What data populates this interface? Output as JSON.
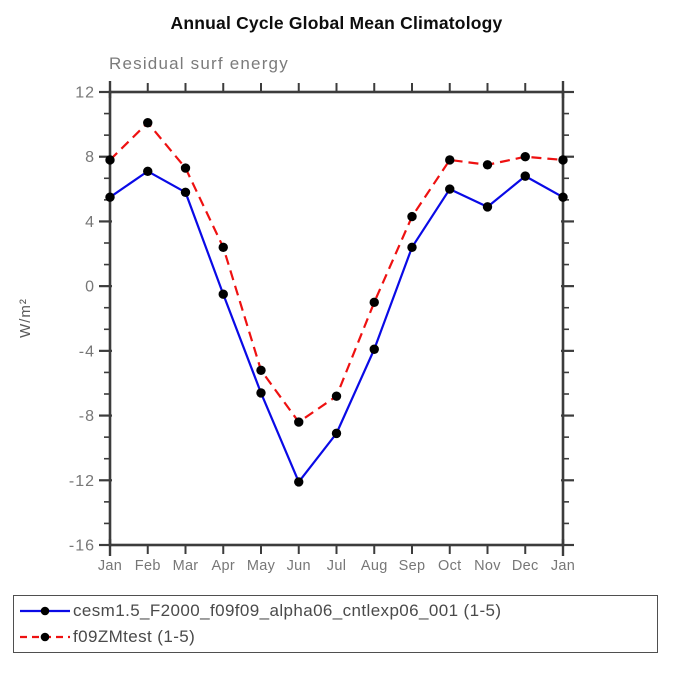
{
  "title": "Annual Cycle Global Mean Climatology",
  "chart_data": {
    "type": "line",
    "title": "Annual Cycle Global Mean Climatology",
    "subtitle": "Residual surf energy",
    "ylabel": "W/m²",
    "xlabel": "",
    "categories": [
      "Jan",
      "Feb",
      "Mar",
      "Apr",
      "May",
      "Jun",
      "Jul",
      "Aug",
      "Sep",
      "Oct",
      "Nov",
      "Dec",
      "Jan"
    ],
    "ylim": [
      -16,
      12
    ],
    "yticks_major": [
      12,
      8,
      4,
      0,
      -4,
      -8,
      -12,
      -16
    ],
    "yticks_minor_per_interval": 2,
    "grid": "off",
    "legend_position": "bottom-left-box",
    "marker": "filled-circle",
    "marker_color": "#000000",
    "series": [
      {
        "name": "cesm1.5_F2000_f09f09_alpha06_cntlexp06_001 (1-5)",
        "color": "#0a0ae6",
        "style": "solid",
        "values": [
          5.5,
          7.1,
          5.8,
          -0.5,
          -6.6,
          -12.1,
          -9.1,
          -3.9,
          2.4,
          6.0,
          4.9,
          6.8,
          5.5
        ]
      },
      {
        "name": "f09ZMtest (1-5)",
        "color": "#ee1111",
        "style": "dashed",
        "values": [
          7.8,
          10.1,
          7.3,
          2.4,
          -5.2,
          -8.4,
          -6.8,
          -1.0,
          4.3,
          7.8,
          7.5,
          8.0,
          7.8
        ]
      }
    ]
  },
  "colors": {
    "axis": "#3c3c3c",
    "tick_label": "#777777",
    "axis_label": "#5a5a5a",
    "subtitle": "#7b7b7b",
    "title": "#0d0d0d",
    "legend_text": "#4a4a4a",
    "legend_border": "#4f4f4f",
    "background": "#ffffff"
  }
}
